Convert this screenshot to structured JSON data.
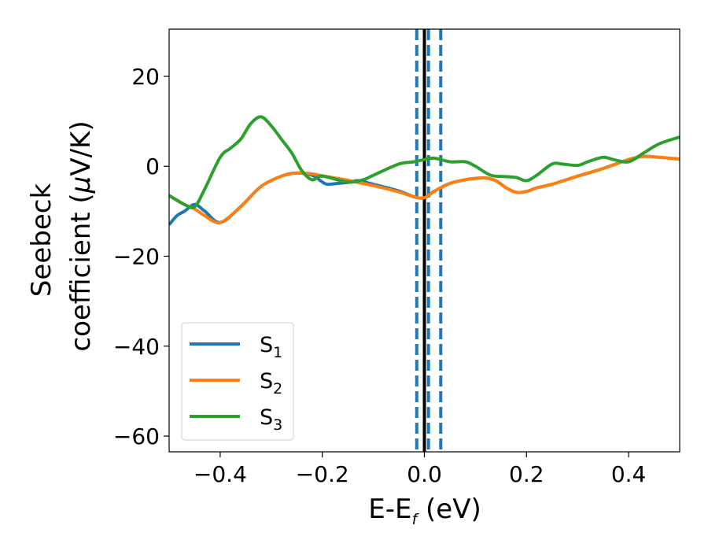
{
  "chart_data": {
    "type": "line",
    "xlabel": "E-E",
    "xlabel_sub": "f",
    "xlabel_unit": " (eV)",
    "ylabel_line1": "Seebeck",
    "ylabel_line2": "coefficient  (",
    "ylabel_mu": "μ",
    "ylabel_unit": "V/K)",
    "xlim": [
      -0.5,
      0.5
    ],
    "ylim": [
      -63.5,
      30.5
    ],
    "xticks": [
      -0.4,
      -0.2,
      0.0,
      0.2,
      0.4
    ],
    "xtick_labels": [
      "−0.4",
      "−0.2",
      "0.0",
      "0.2",
      "0.4"
    ],
    "yticks": [
      -60,
      -40,
      -20,
      0,
      20
    ],
    "ytick_labels": [
      "−60",
      "−40",
      "−20",
      "0",
      "20"
    ],
    "grid": false,
    "legend_position": "lower-left",
    "series": [
      {
        "name": "S",
        "name_sub": "1",
        "color": "#1f77b4",
        "x": [
          -0.5,
          -0.485,
          -0.47,
          -0.45,
          -0.43,
          -0.4,
          -0.36,
          -0.32,
          -0.28,
          -0.25,
          -0.22,
          -0.2,
          -0.19,
          -0.17,
          -0.15,
          -0.13,
          -0.1,
          -0.05,
          -0.02,
          0.0,
          0.02,
          0.05,
          0.08,
          0.1,
          0.12,
          0.14,
          0.16,
          0.18,
          0.2,
          0.22,
          0.25,
          0.3,
          0.35,
          0.4,
          0.43,
          0.46,
          0.5
        ],
        "y": [
          -13,
          -11,
          -10,
          -8.5,
          -10,
          -12.5,
          -9,
          -4.5,
          -2.2,
          -1.5,
          -2,
          -3.5,
          -4,
          -3.8,
          -3.6,
          -3.2,
          -4,
          -5.5,
          -6.8,
          -7,
          -5.5,
          -3.8,
          -3,
          -2.7,
          -2.6,
          -3.2,
          -4.8,
          -5.8,
          -5.6,
          -4.8,
          -4,
          -2.2,
          -0.5,
          1.5,
          2.2,
          2.0,
          1.6
        ]
      },
      {
        "name": "S",
        "name_sub": "2",
        "color": "#ff7f0e",
        "x": [
          -0.5,
          -0.485,
          -0.47,
          -0.45,
          -0.43,
          -0.4,
          -0.36,
          -0.32,
          -0.28,
          -0.25,
          -0.22,
          -0.2,
          -0.17,
          -0.15,
          -0.13,
          -0.1,
          -0.05,
          -0.02,
          0.0,
          0.02,
          0.05,
          0.08,
          0.1,
          0.12,
          0.14,
          0.16,
          0.18,
          0.2,
          0.22,
          0.25,
          0.3,
          0.35,
          0.4,
          0.43,
          0.46,
          0.5
        ],
        "y": [
          -6.5,
          -7.5,
          -8.5,
          -9.5,
          -11,
          -12.5,
          -9,
          -4.5,
          -2.2,
          -1.5,
          -1.7,
          -2.1,
          -2.7,
          -3.1,
          -3.6,
          -4.3,
          -5.7,
          -6.8,
          -7,
          -5.5,
          -3.8,
          -3,
          -2.7,
          -2.6,
          -3.2,
          -4.8,
          -5.8,
          -5.6,
          -4.8,
          -4,
          -2.2,
          -0.5,
          1.5,
          2.2,
          2.0,
          1.6
        ]
      },
      {
        "name": "S",
        "name_sub": "3",
        "color": "#2ca02c",
        "x": [
          -0.5,
          -0.47,
          -0.45,
          -0.43,
          -0.4,
          -0.38,
          -0.36,
          -0.34,
          -0.32,
          -0.3,
          -0.28,
          -0.26,
          -0.24,
          -0.22,
          -0.2,
          -0.15,
          -0.12,
          -0.1,
          -0.05,
          -0.02,
          0.0,
          0.02,
          0.05,
          0.08,
          0.1,
          0.13,
          0.16,
          0.18,
          0.2,
          0.22,
          0.25,
          0.27,
          0.3,
          0.32,
          0.35,
          0.37,
          0.4,
          0.43,
          0.46,
          0.5
        ],
        "y": [
          -6.5,
          -8.5,
          -9,
          -5,
          2,
          4,
          6,
          9.5,
          11,
          9,
          6,
          3,
          -1,
          -3,
          -2.2,
          -3.5,
          -3,
          -2,
          0.5,
          1,
          1.5,
          1.8,
          1,
          1,
          0,
          -2,
          -2.3,
          -2.5,
          -3.2,
          -2,
          0.5,
          0.5,
          0.2,
          1,
          2,
          1.5,
          1,
          3,
          5,
          6.5
        ]
      }
    ],
    "vlines": [
      {
        "x": 0.0,
        "style": "solid",
        "color": "#000000"
      },
      {
        "x": -0.015,
        "style": "dashed",
        "color": "#1f77b4"
      },
      {
        "x": 0.008,
        "style": "dashed",
        "color": "#1f77b4"
      },
      {
        "x": 0.032,
        "style": "dashed",
        "color": "#1f77b4"
      }
    ]
  }
}
